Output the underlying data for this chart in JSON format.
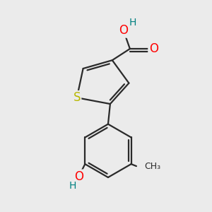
{
  "background_color": "#ebebeb",
  "bond_color": "#2a2a2a",
  "bond_width": 1.6,
  "S_color": "#b8b800",
  "O_color": "#ff0000",
  "H_color": "#008080",
  "C_color": "#2a2a2a",
  "figsize": [
    3.0,
    3.0
  ],
  "dpi": 100,
  "xlim": [
    0,
    10
  ],
  "ylim": [
    0,
    10
  ]
}
